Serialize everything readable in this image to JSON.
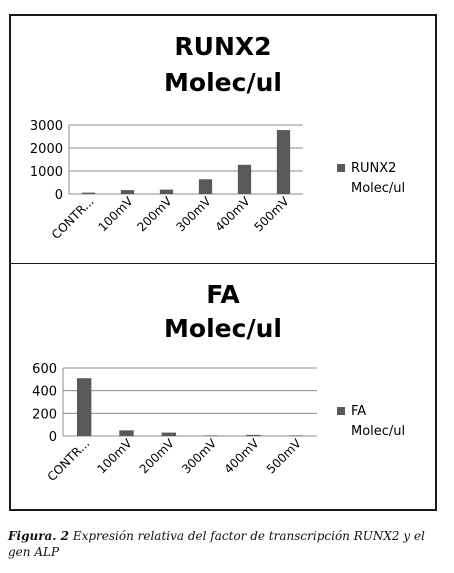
{
  "chart_data": [
    {
      "type": "bar",
      "title_lines": [
        "RUNX2",
        "Molec/ul"
      ],
      "categories": [
        "CONTR...",
        "100mV",
        "200mV",
        "300mV",
        "400mV",
        "500mV"
      ],
      "series": [
        {
          "name": "RUNX2 Molec/ul",
          "values": [
            60,
            170,
            190,
            640,
            1270,
            2780
          ]
        }
      ],
      "yticks": [
        0,
        1000,
        2000,
        3000
      ],
      "ylim": [
        0,
        3000
      ],
      "grid": true,
      "legend_lines": [
        "RUNX2",
        "Molec/ul"
      ],
      "legend_position": "right",
      "bar_color": "#595959"
    },
    {
      "type": "bar",
      "title_lines": [
        "FA",
        "Molec/ul"
      ],
      "categories": [
        "CONTR...",
        "100mV",
        "200mV",
        "300mV",
        "400mV",
        "500mV"
      ],
      "series": [
        {
          "name": "FA Molec/ul",
          "values": [
            510,
            50,
            30,
            5,
            10,
            5
          ]
        }
      ],
      "yticks": [
        0,
        200,
        400,
        600
      ],
      "ylim": [
        0,
        600
      ],
      "grid": true,
      "legend_lines": [
        "FA",
        "Molec/ul"
      ],
      "legend_position": "right",
      "bar_color": "#595959"
    }
  ],
  "caption": {
    "label": "Figura. 2",
    "text": " Expresión relativa del factor de transcripción RUNX2 y el gen ALP"
  }
}
